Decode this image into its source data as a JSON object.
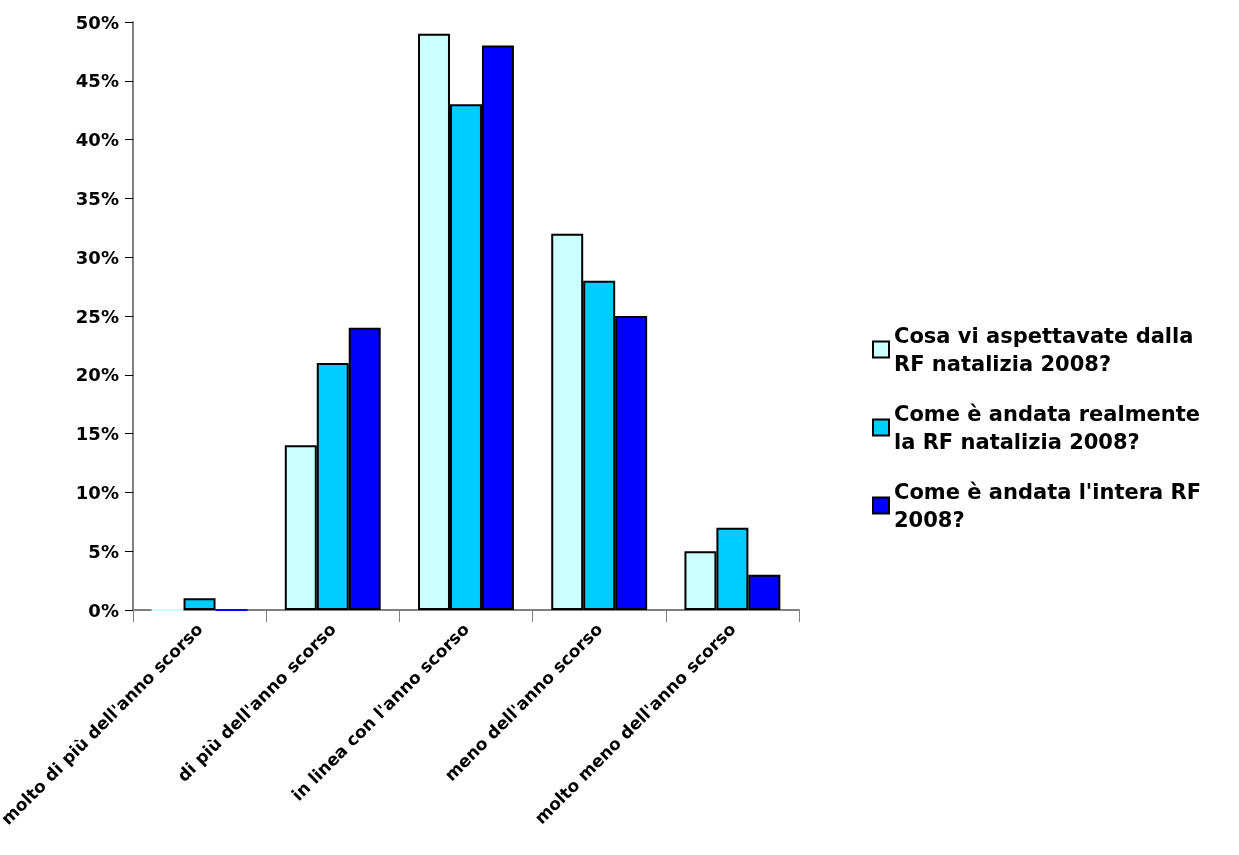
{
  "chart_data": {
    "type": "bar",
    "categories": [
      "molto di più dell'anno scorso",
      "di più dell'anno scorso",
      "in linea con l'anno scorso",
      "meno dell'anno scorso",
      "molto meno dell'anno scorso"
    ],
    "series": [
      {
        "name": "Cosa vi aspettavate dalla RF natalizia 2008?",
        "color": "#ccffff",
        "values": [
          0,
          14,
          49,
          32,
          5
        ]
      },
      {
        "name": "Come è andata realmente la RF natalizia 2008?",
        "color": "#00ccff",
        "values": [
          1,
          21,
          43,
          28,
          7
        ]
      },
      {
        "name": "Come è andata l'intera RF 2008?",
        "color": "#0000ff",
        "values": [
          0,
          24,
          48,
          25,
          3
        ]
      }
    ],
    "ylim": [
      0,
      50
    ],
    "yticks": [
      {
        "value": 0,
        "label": "0%"
      },
      {
        "value": 5,
        "label": "5%"
      },
      {
        "value": 10,
        "label": "10%"
      },
      {
        "value": 15,
        "label": "15%"
      },
      {
        "value": 20,
        "label": "20%"
      },
      {
        "value": 25,
        "label": "25%"
      },
      {
        "value": 30,
        "label": "30%"
      },
      {
        "value": 35,
        "label": "35%"
      },
      {
        "value": 40,
        "label": "40%"
      },
      {
        "value": 45,
        "label": "45%"
      },
      {
        "value": 50,
        "label": "50%"
      }
    ],
    "grid": false,
    "legend": "right"
  }
}
